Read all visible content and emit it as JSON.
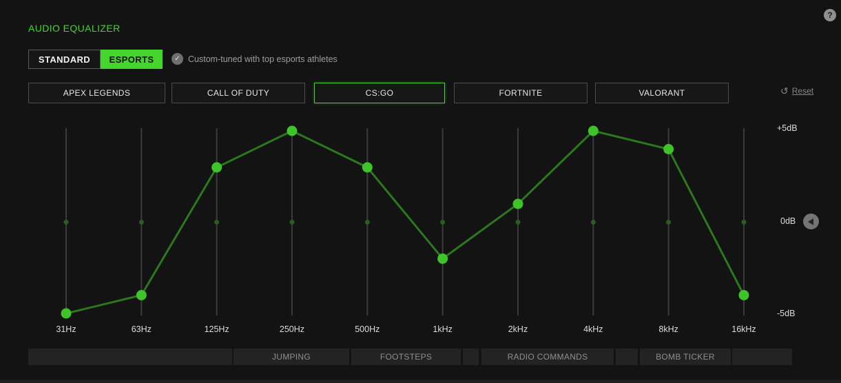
{
  "header": {
    "title": "AUDIO EQUALIZER",
    "help_icon": "?"
  },
  "mode_tabs": {
    "standard": "STANDARD",
    "esports": "ESPORTS",
    "active": "ESPORTS",
    "note": "Custom-tuned with top esports athletes"
  },
  "presets": {
    "items": [
      {
        "label": "APEX LEGENDS",
        "selected": false
      },
      {
        "label": "CALL OF DUTY",
        "selected": false
      },
      {
        "label": "CS:GO",
        "selected": true
      },
      {
        "label": "FORTNITE",
        "selected": false
      },
      {
        "label": "VALORANT",
        "selected": false
      }
    ],
    "reset_label": "Reset"
  },
  "chart_data": {
    "type": "line",
    "categories": [
      "31Hz",
      "63Hz",
      "125Hz",
      "250Hz",
      "500Hz",
      "1kHz",
      "2kHz",
      "4kHz",
      "8kHz",
      "16kHz"
    ],
    "values": [
      -5,
      -4,
      3,
      5,
      3,
      -2,
      1,
      5,
      4,
      -4
    ],
    "unit": "dB",
    "ylim": [
      -5,
      5
    ],
    "y_tick_labels": [
      "+5dB",
      "0dB",
      "-5dB"
    ],
    "xlabel": "",
    "ylabel": "",
    "grid": "vertical-band-lines with 0dB marker dots",
    "legend": "none",
    "accent_color": "#44d62c",
    "point_color": "#3fc32a",
    "line_color": "#2c781e",
    "zero_dot_color": "#2b5c22",
    "gridline_color": "#3b3b3b"
  },
  "bands": {
    "segments": [
      {
        "label": ""
      },
      {
        "label": "JUMPING"
      },
      {
        "label": "FOOTSTEPS"
      },
      {
        "label": ""
      },
      {
        "label": "RADIO COMMANDS"
      },
      {
        "label": ""
      },
      {
        "label": "BOMB TICKER"
      },
      {
        "label": ""
      }
    ]
  },
  "colors": {
    "background": "#131313",
    "brand_green": "#44d62c",
    "segment_bg": "#232323",
    "muted_text": "#8f8f8f"
  }
}
